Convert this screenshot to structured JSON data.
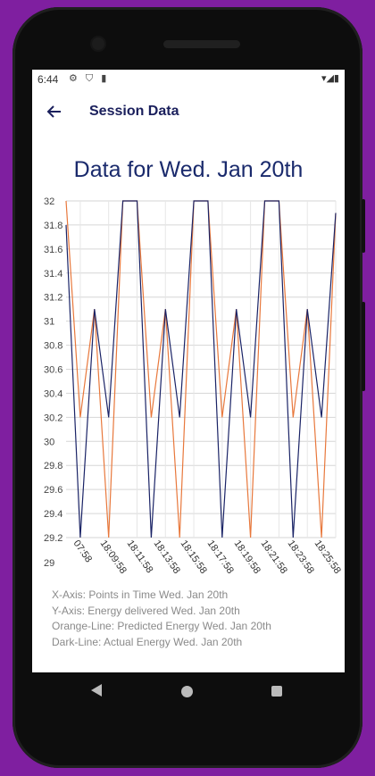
{
  "status": {
    "time": "6:44",
    "left_icons": "⚙ ⛉ ▮",
    "right_icons": "▾◢▮"
  },
  "appbar": {
    "title": "Session Data"
  },
  "chart_data": {
    "type": "line",
    "title": "Data for Wed. Jan 20th",
    "x": [
      "18:07:58",
      "18:08:58",
      "18:09:58",
      "18:10:58",
      "18:11:58",
      "18:12:58",
      "18:13:58",
      "18:14:58",
      "18:15:58",
      "18:16:58",
      "18:17:58",
      "18:18:58",
      "18:19:58",
      "18:20:58",
      "18:21:58",
      "18:22:58",
      "18:23:58",
      "18:24:58",
      "18:25:58",
      "18:26:58"
    ],
    "x_tick_labels": [
      "07:58",
      "18:09:58",
      "18:11:58",
      "18:13:58",
      "18:15:58",
      "18:17:58",
      "18:19:58",
      "18:21:58",
      "18:23:58",
      "18:25:58"
    ],
    "ylim": [
      29,
      32
    ],
    "y_ticks": [
      "32",
      "31.8",
      "31.6",
      "31.4",
      "31.2",
      "31",
      "30.8",
      "30.6",
      "30.4",
      "30.2",
      "30",
      "29.8",
      "29.6",
      "29.4",
      "29.2",
      "29"
    ],
    "series": [
      {
        "color": "#e8783c",
        "values": [
          32.0,
          30.2,
          31.1,
          29.2,
          32.0,
          32.0,
          30.2,
          31.1,
          29.2,
          32.0,
          32.0,
          30.2,
          31.1,
          29.2,
          32.0,
          32.0,
          30.2,
          31.1,
          29.2,
          31.9
        ]
      },
      {
        "color": "#1a2366",
        "values": [
          31.8,
          29.2,
          31.1,
          30.2,
          32.0,
          32.0,
          29.2,
          31.1,
          30.2,
          32.0,
          32.0,
          29.2,
          31.1,
          30.2,
          32.0,
          32.0,
          29.2,
          31.1,
          30.2,
          31.9
        ]
      }
    ],
    "grid": true
  },
  "legend": {
    "x_axis": "X-Axis: Points in Time Wed. Jan 20th",
    "y_axis": "Y-Axis: Energy delivered Wed. Jan 20th",
    "orange_line": "Orange-Line: Predicted Energy Wed. Jan 20th",
    "dark_line": "Dark-Line: Actual Energy Wed. Jan 20th"
  }
}
